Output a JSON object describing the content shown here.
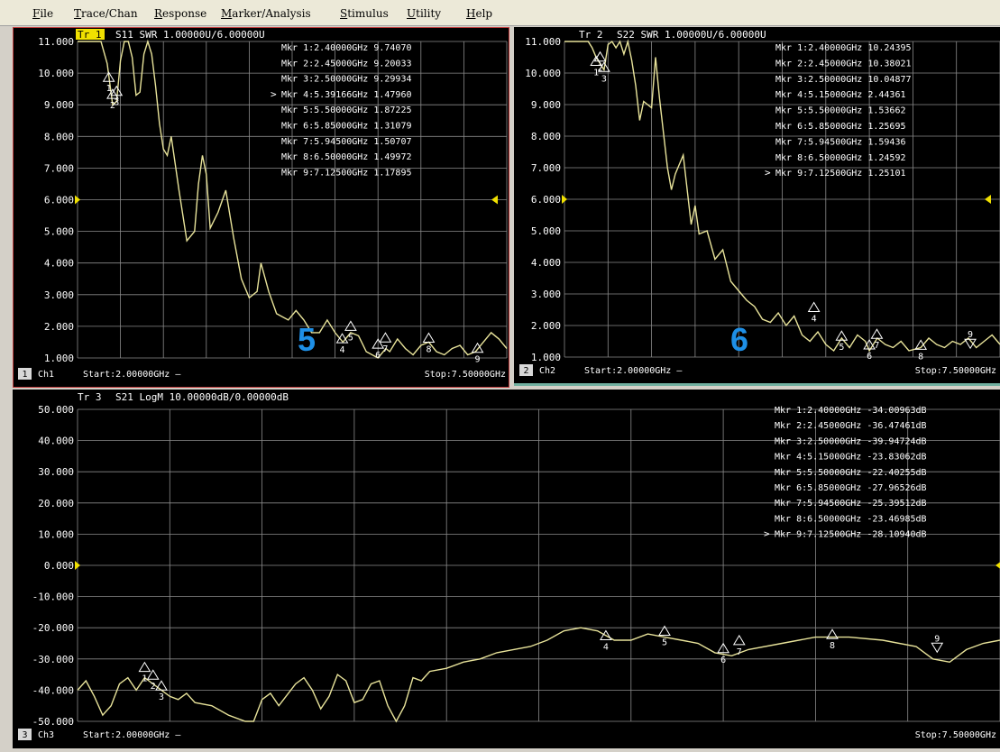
{
  "menu": [
    {
      "label": "File",
      "key": "F"
    },
    {
      "label": "Trace/Chan",
      "key": "T"
    },
    {
      "label": "Response",
      "key": "R"
    },
    {
      "label": "Marker/Analysis",
      "key": "M"
    },
    {
      "label": "Stimulus",
      "key": "S"
    },
    {
      "label": "Utility",
      "key": "U"
    },
    {
      "label": "Help",
      "key": "H"
    }
  ],
  "overlay_labels": [
    "5",
    "6"
  ],
  "colors": {
    "trace": "#e8e39a",
    "grid": "#8a8a8a",
    "ref_marker": "#f0e000",
    "chart_bg": "#000000",
    "frame1": "#c04040",
    "frame2": "#70b0a0"
  },
  "chart_data": [
    {
      "type": "line",
      "trace_label": "Tr 1",
      "header": "S11 SWR 1.00000U/6.00000U",
      "channel_num": "1",
      "channel": "Ch1",
      "start": "Start:2.00000GHz —",
      "stop": "Stop:7.50000GHz",
      "xlim": [
        2.0,
        7.5
      ],
      "ylim": [
        1.0,
        11.0
      ],
      "ref_value": 6.0,
      "yticks": [
        "11.000",
        "10.000",
        "9.000",
        "8.000",
        "7.000",
        "6.000",
        "5.000",
        "4.000",
        "3.000",
        "2.000",
        "1.000"
      ],
      "active_marker": 4,
      "marker_rows": [
        "Mkr 1:2.40000GHz 9.74070",
        "Mkr 2:2.45000GHz 9.20033",
        "Mkr 3:2.50000GHz 9.29934",
        "Mkr 4:5.39166GHz 1.47960",
        "Mkr 5:5.50000GHz 1.87225",
        "Mkr 6:5.85000GHz 1.31079",
        "Mkr 7:5.94500GHz 1.50707",
        "Mkr 8:6.50000GHz 1.49972",
        "Mkr 9:7.12500GHz 1.17895"
      ],
      "markers": [
        {
          "n": "1",
          "x": 2.4,
          "y": 9.7407
        },
        {
          "n": "2",
          "x": 2.45,
          "y": 9.20033
        },
        {
          "n": "3",
          "x": 2.5,
          "y": 9.29934
        },
        {
          "n": "4",
          "x": 5.39166,
          "y": 1.4796
        },
        {
          "n": "5",
          "x": 5.5,
          "y": 1.87225
        },
        {
          "n": "6",
          "x": 5.85,
          "y": 1.31079
        },
        {
          "n": "7",
          "x": 5.945,
          "y": 1.50707
        },
        {
          "n": "8",
          "x": 6.5,
          "y": 1.49972
        },
        {
          "n": "9",
          "x": 7.125,
          "y": 1.17895
        }
      ],
      "x": [
        2.0,
        2.2,
        2.3,
        2.38,
        2.45,
        2.5,
        2.55,
        2.6,
        2.65,
        2.7,
        2.75,
        2.8,
        2.85,
        2.9,
        2.95,
        3.0,
        3.05,
        3.1,
        3.15,
        3.2,
        3.3,
        3.4,
        3.5,
        3.55,
        3.6,
        3.65,
        3.7,
        3.8,
        3.9,
        4.0,
        4.1,
        4.2,
        4.3,
        4.35,
        4.45,
        4.55,
        4.7,
        4.8,
        4.9,
        5.0,
        5.1,
        5.2,
        5.3,
        5.4,
        5.5,
        5.6,
        5.7,
        5.85,
        5.95,
        6.0,
        6.1,
        6.2,
        6.3,
        6.4,
        6.5,
        6.6,
        6.7,
        6.8,
        6.9,
        7.0,
        7.1,
        7.2,
        7.3,
        7.4,
        7.5
      ],
      "y": [
        11.0,
        11.0,
        11.0,
        10.3,
        9.0,
        9.1,
        10.4,
        11.0,
        11.0,
        10.5,
        9.3,
        9.4,
        10.6,
        11.0,
        10.6,
        9.6,
        8.4,
        7.6,
        7.4,
        8.0,
        6.3,
        4.7,
        5.0,
        6.5,
        7.4,
        6.8,
        5.1,
        5.6,
        6.3,
        4.8,
        3.5,
        2.9,
        3.1,
        4.0,
        3.1,
        2.4,
        2.2,
        2.5,
        2.2,
        1.8,
        1.8,
        2.2,
        1.8,
        1.5,
        1.8,
        1.7,
        1.2,
        1.0,
        1.3,
        1.2,
        1.6,
        1.3,
        1.1,
        1.4,
        1.5,
        1.2,
        1.1,
        1.3,
        1.4,
        1.1,
        1.2,
        1.5,
        1.8,
        1.6,
        1.3
      ]
    },
    {
      "type": "line",
      "trace_label": "Tr 2",
      "header": "S22 SWR 1.00000U/6.00000U",
      "channel_num": "2",
      "channel": "Ch2",
      "start": "Start:2.00000GHz —",
      "stop": "Stop:7.50000GHz",
      "xlim": [
        2.0,
        7.5
      ],
      "ylim": [
        1.0,
        11.0
      ],
      "ref_value": 6.0,
      "yticks": [
        "11.000",
        "10.000",
        "9.000",
        "8.000",
        "7.000",
        "6.000",
        "5.000",
        "4.000",
        "3.000",
        "2.000",
        "1.000"
      ],
      "active_marker": 9,
      "marker_rows": [
        "Mkr 1:2.40000GHz 10.24395",
        "Mkr 2:2.45000GHz 10.38021",
        "Mkr 3:2.50000GHz 10.04877",
        "Mkr 4:5.15000GHz 2.44361",
        "Mkr 5:5.50000GHz 1.53662",
        "Mkr 6:5.85000GHz 1.25695",
        "Mkr 7:5.94500GHz 1.59436",
        "Mkr 8:6.50000GHz 1.24592",
        "Mkr 9:7.12500GHz 1.25101"
      ],
      "markers": [
        {
          "n": "1",
          "x": 2.4,
          "y": 10.24395
        },
        {
          "n": "2",
          "x": 2.45,
          "y": 10.38021
        },
        {
          "n": "3",
          "x": 2.5,
          "y": 10.04877
        },
        {
          "n": "4",
          "x": 5.15,
          "y": 2.44361
        },
        {
          "n": "5",
          "x": 5.5,
          "y": 1.53662
        },
        {
          "n": "6",
          "x": 5.85,
          "y": 1.25695
        },
        {
          "n": "7",
          "x": 5.945,
          "y": 1.59436
        },
        {
          "n": "8",
          "x": 6.5,
          "y": 1.24592
        },
        {
          "n": "9",
          "x": 7.125,
          "y": 1.25101
        }
      ],
      "x": [
        2.0,
        2.3,
        2.35,
        2.4,
        2.45,
        2.5,
        2.55,
        2.6,
        2.65,
        2.7,
        2.75,
        2.8,
        2.85,
        2.9,
        2.95,
        3.0,
        3.1,
        3.15,
        3.2,
        3.3,
        3.35,
        3.4,
        3.5,
        3.6,
        3.65,
        3.7,
        3.8,
        3.9,
        4.0,
        4.1,
        4.2,
        4.3,
        4.4,
        4.5,
        4.6,
        4.7,
        4.8,
        4.9,
        5.0,
        5.1,
        5.2,
        5.3,
        5.4,
        5.5,
        5.6,
        5.7,
        5.8,
        5.85,
        5.95,
        6.05,
        6.15,
        6.25,
        6.35,
        6.5,
        6.6,
        6.7,
        6.8,
        6.9,
        7.0,
        7.1,
        7.2,
        7.3,
        7.4,
        7.5
      ],
      "y": [
        11.0,
        11.0,
        10.8,
        10.5,
        10.3,
        10.1,
        10.9,
        11.0,
        10.8,
        11.0,
        10.6,
        11.0,
        10.4,
        9.6,
        8.5,
        9.1,
        8.9,
        10.5,
        9.2,
        7.0,
        6.3,
        6.8,
        7.4,
        5.2,
        5.8,
        4.9,
        5.0,
        4.1,
        4.4,
        3.4,
        3.1,
        2.8,
        2.6,
        2.2,
        2.1,
        2.4,
        2.0,
        2.3,
        1.7,
        1.5,
        1.8,
        1.4,
        1.2,
        1.6,
        1.3,
        1.7,
        1.5,
        1.2,
        1.6,
        1.4,
        1.3,
        1.5,
        1.2,
        1.3,
        1.6,
        1.4,
        1.3,
        1.5,
        1.4,
        1.6,
        1.3,
        1.5,
        1.7,
        1.4
      ]
    },
    {
      "type": "line",
      "trace_label": "Tr 3",
      "header": "S21 LogM 10.00000dB/0.00000dB",
      "channel_num": "3",
      "channel": "Ch3",
      "start": "Start:2.00000GHz —",
      "stop": "Stop:7.50000GHz",
      "xlim": [
        2.0,
        7.5
      ],
      "ylim": [
        -50,
        50
      ],
      "ref_value": 0,
      "yticks": [
        "50.000",
        "40.000",
        "30.000",
        "20.000",
        "10.000",
        "0.000",
        "-10.000",
        "-20.000",
        "-30.000",
        "-40.000",
        "-50.000"
      ],
      "active_marker": 9,
      "marker_rows": [
        "Mkr 1:2.40000GHz -34.00963dB",
        "Mkr 2:2.45000GHz -36.47461dB",
        "Mkr 3:2.50000GHz -39.94724dB",
        "Mkr 4:5.15000GHz -23.83062dB",
        "Mkr 5:5.50000GHz -22.40255dB",
        "Mkr 6:5.85000GHz -27.96526dB",
        "Mkr 7:5.94500GHz -25.39512dB",
        "Mkr 8:6.50000GHz -23.46985dB",
        "Mkr 9:7.12500GHz -28.10940dB"
      ],
      "markers": [
        {
          "n": "1",
          "x": 2.4,
          "y": -34.00963
        },
        {
          "n": "2",
          "x": 2.45,
          "y": -36.47461
        },
        {
          "n": "3",
          "x": 2.5,
          "y": -39.94724
        },
        {
          "n": "4",
          "x": 5.15,
          "y": -23.83062
        },
        {
          "n": "5",
          "x": 5.5,
          "y": -22.40255
        },
        {
          "n": "6",
          "x": 5.85,
          "y": -27.96526
        },
        {
          "n": "7",
          "x": 5.945,
          "y": -25.39512
        },
        {
          "n": "8",
          "x": 6.5,
          "y": -23.46985
        },
        {
          "n": "9",
          "x": 7.125,
          "y": -28.1094
        }
      ],
      "x": [
        2.0,
        2.05,
        2.1,
        2.15,
        2.2,
        2.25,
        2.3,
        2.35,
        2.4,
        2.45,
        2.5,
        2.55,
        2.6,
        2.65,
        2.7,
        2.8,
        2.9,
        3.0,
        3.05,
        3.1,
        3.15,
        3.2,
        3.3,
        3.35,
        3.4,
        3.45,
        3.5,
        3.55,
        3.6,
        3.65,
        3.7,
        3.75,
        3.8,
        3.85,
        3.9,
        3.95,
        4.0,
        4.05,
        4.1,
        4.2,
        4.3,
        4.4,
        4.5,
        4.6,
        4.7,
        4.8,
        4.9,
        5.0,
        5.1,
        5.2,
        5.3,
        5.4,
        5.5,
        5.6,
        5.7,
        5.8,
        5.9,
        6.0,
        6.2,
        6.4,
        6.6,
        6.8,
        7.0,
        7.05,
        7.1,
        7.2,
        7.3,
        7.4,
        7.5
      ],
      "y": [
        -40,
        -37,
        -42,
        -48,
        -45,
        -38,
        -36,
        -40,
        -36,
        -38,
        -40,
        -42,
        -43,
        -41,
        -44,
        -45,
        -48,
        -50,
        -50,
        -43,
        -41,
        -45,
        -38,
        -36,
        -40,
        -46,
        -42,
        -35,
        -37,
        -44,
        -43,
        -38,
        -37,
        -45,
        -50,
        -45,
        -36,
        -37,
        -34,
        -33,
        -31,
        -30,
        -28,
        -27,
        -26,
        -24,
        -21,
        -20,
        -21,
        -24,
        -24,
        -22,
        -23,
        -24,
        -25,
        -28,
        -29,
        -27,
        -25,
        -23,
        -23,
        -24,
        -26,
        -28,
        -30,
        -31,
        -27,
        -25,
        -24
      ]
    }
  ]
}
